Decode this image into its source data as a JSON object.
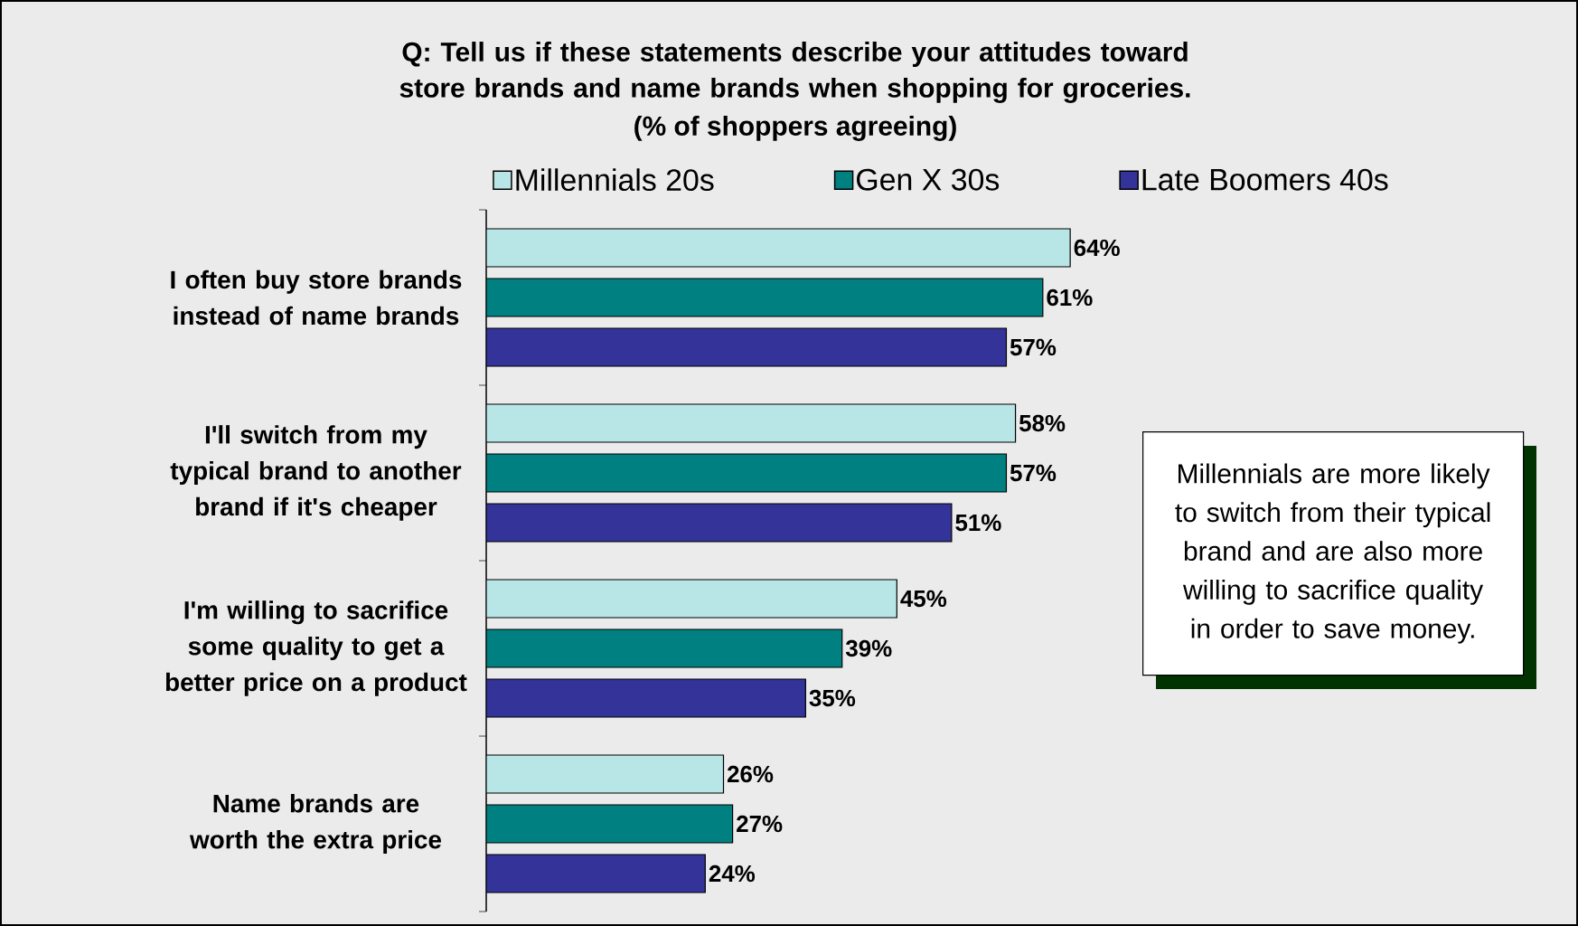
{
  "chart_data": {
    "type": "bar",
    "orientation": "horizontal",
    "title": "Q:  Tell us if these statements describe your attitudes toward store brands and name brands when shopping for groceries.",
    "subtitle": "(% of shoppers agreeing)",
    "categories": [
      "I often buy store brands instead of name brands",
      "I'll switch from my typical brand to another brand if it's cheaper",
      "I'm willing to sacrifice some quality to get a better price on a product",
      "Name brands are worth the extra price"
    ],
    "series": [
      {
        "name": "Millennials 20s",
        "color": "#b8e6e6",
        "values": [
          64,
          58,
          45,
          26
        ],
        "value_labels": [
          "64%",
          "58%",
          "45%",
          "26%"
        ]
      },
      {
        "name": "Gen X 30s",
        "color": "#008080",
        "values": [
          61,
          57,
          39,
          27
        ],
        "value_labels": [
          "61%",
          "57%",
          "39%",
          "27%"
        ]
      },
      {
        "name": "Late Boomers 40s",
        "color": "#333399",
        "values": [
          57,
          51,
          35,
          24
        ],
        "value_labels": [
          "57%",
          "51%",
          "35%",
          "24%"
        ]
      }
    ],
    "tick_labels": "y",
    "legend": "top",
    "annotations": [
      "Millennials are more likely to switch from their typical brand and are also more willing to sacrifice quality in order to save money."
    ]
  }
}
